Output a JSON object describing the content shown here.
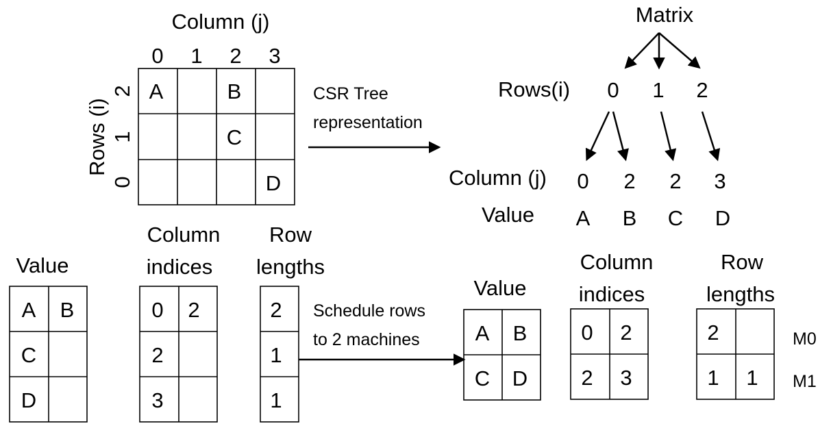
{
  "matrix": {
    "column_title": "Column (j)",
    "rows_title": "Rows (i)",
    "column_ticks": [
      "0",
      "1",
      "2",
      "3"
    ],
    "row_ticks": [
      "2",
      "1",
      "0"
    ],
    "cells": [
      [
        "A",
        "",
        "B",
        ""
      ],
      [
        "",
        "",
        "C",
        ""
      ],
      [
        "",
        "",
        "",
        "D"
      ]
    ]
  },
  "csr_arrow": {
    "label_line1": "CSR Tree",
    "label_line2": "representation"
  },
  "tree": {
    "root": "Matrix",
    "rows_label": "Rows(i)",
    "rows": [
      "0",
      "1",
      "2"
    ],
    "column_label": "Column (j)",
    "columns": [
      "0",
      "2",
      "2",
      "3"
    ],
    "value_label": "Value",
    "values": [
      "A",
      "B",
      "C",
      "D"
    ]
  },
  "csr_arrays": {
    "value_title": "Value",
    "value": [
      [
        "A",
        "B"
      ],
      [
        "C",
        ""
      ],
      [
        "D",
        ""
      ]
    ],
    "col_title_line1": "Column",
    "col_title_line2": "indices",
    "col": [
      [
        "0",
        "2"
      ],
      [
        "2",
        ""
      ],
      [
        "3",
        ""
      ]
    ],
    "len_title_line1": "Row",
    "len_title_line2": "lengths",
    "len": [
      "2",
      "1",
      "1"
    ]
  },
  "schedule_arrow": {
    "label_line1": "Schedule rows",
    "label_line2": "to 2 machines"
  },
  "scheduled": {
    "value_title": "Value",
    "value": [
      [
        "A",
        "B"
      ],
      [
        "C",
        "D"
      ]
    ],
    "col_title_line1": "Column",
    "col_title_line2": "indices",
    "col": [
      [
        "0",
        "2"
      ],
      [
        "2",
        "3"
      ]
    ],
    "len_title_line1": "Row",
    "len_title_line2": "lengths",
    "len": [
      [
        "2",
        ""
      ],
      [
        "1",
        "1"
      ]
    ],
    "machines": [
      "M0",
      "M1"
    ]
  }
}
